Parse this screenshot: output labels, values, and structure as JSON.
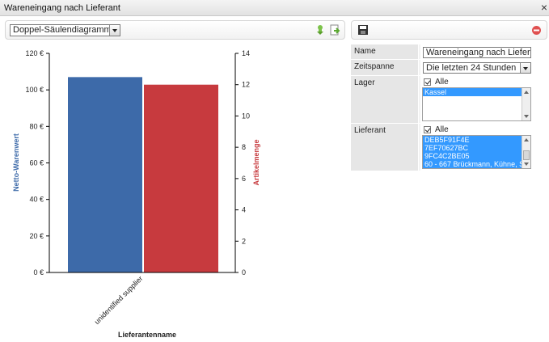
{
  "window": {
    "title": "Wareneingang nach Lieferant",
    "close_glyph": "×"
  },
  "toolbar": {
    "chart_type_selected": "Doppel-Säulendiagramm"
  },
  "properties": {
    "name_label": "Name",
    "name_value": "Wareneingang nach Lieferant",
    "zeitspanne_label": "Zeitspanne",
    "zeitspanne_value": "Die letzten 24 Stunden",
    "lager_label": "Lager",
    "lager_all_label": "Alle",
    "lager_items": [
      "Kassel"
    ],
    "lieferant_label": "Lieferant",
    "lieferant_all_label": "Alle",
    "lieferant_items": [
      "DEB5F91F4E",
      "7EF70627BC",
      "9FC4C2BE05",
      "60 - 667 Brückmann, Kühne, S"
    ]
  },
  "icons": {
    "download": "download-icon",
    "export": "export-icon",
    "save": "save-icon",
    "delete": "delete-icon"
  },
  "colors": {
    "series1": "#3d6aa9",
    "series2": "#c73a3e",
    "left_axis_label": "#3d6aa9",
    "right_axis_label": "#c73a3e"
  },
  "chart_data": {
    "type": "bar",
    "categories": [
      "unidentified supplier"
    ],
    "series": [
      {
        "name": "Netto-Warenwert",
        "values": [
          107
        ],
        "axis": "left"
      },
      {
        "name": "Artikelmenge",
        "values": [
          12
        ],
        "axis": "right"
      }
    ],
    "xlabel": "Lieferantenname",
    "ylabel": "Netto-Warenwert",
    "y2label": "Artikelmenge",
    "ylim": [
      0,
      120
    ],
    "y2lim": [
      0,
      14
    ],
    "yticks": [
      "0 €",
      "20 €",
      "40 €",
      "60 €",
      "80 €",
      "100 €",
      "120 €"
    ],
    "y2ticks": [
      "0",
      "2",
      "4",
      "6",
      "8",
      "10",
      "12",
      "14"
    ],
    "grid": false,
    "legend": "none"
  }
}
